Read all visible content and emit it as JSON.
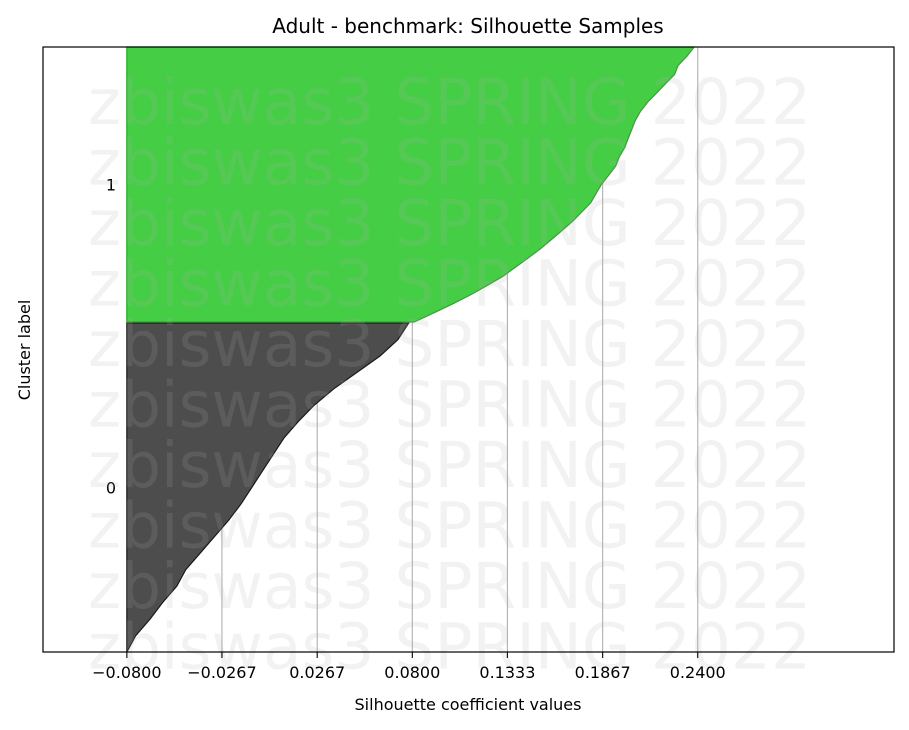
{
  "chart_data": {
    "type": "area",
    "subtype": "silhouette",
    "title": "Adult - benchmark: Silhouette Samples",
    "xlabel": "Silhouette coefficient values",
    "ylabel": "Cluster label",
    "xlim": [
      -0.127,
      0.35
    ],
    "xticks": [
      -0.08,
      -0.0267,
      0.0267,
      0.08,
      0.1333,
      0.1867,
      0.24
    ],
    "xtick_labels": [
      "−0.0800",
      "−0.0267",
      "0.0267",
      "0.0800",
      "0.1333",
      "0.1867",
      "0.2400"
    ],
    "grid": "x-major",
    "clusters": [
      {
        "label": "0",
        "color": "#4d4d4d",
        "edge_color": "#1a1a1a",
        "profile": [
          [
            0.0,
            -0.08
          ],
          [
            0.05,
            -0.075
          ],
          [
            0.1,
            -0.067
          ],
          [
            0.15,
            -0.06
          ],
          [
            0.2,
            -0.052
          ],
          [
            0.25,
            -0.047
          ],
          [
            0.3,
            -0.039
          ],
          [
            0.35,
            -0.031
          ],
          [
            0.4,
            -0.023
          ],
          [
            0.45,
            -0.016
          ],
          [
            0.5,
            -0.01
          ],
          [
            0.55,
            -0.004
          ],
          [
            0.6,
            0.002
          ],
          [
            0.65,
            0.008
          ],
          [
            0.7,
            0.016
          ],
          [
            0.75,
            0.025
          ],
          [
            0.8,
            0.036
          ],
          [
            0.85,
            0.049
          ],
          [
            0.9,
            0.062
          ],
          [
            0.95,
            0.072
          ],
          [
            1.0,
            0.078
          ]
        ]
      },
      {
        "label": "1",
        "color": "#46cd46",
        "edge_color": "#22b022",
        "profile": [
          [
            0.0,
            0.081
          ],
          [
            0.033,
            0.092
          ],
          [
            0.067,
            0.103
          ],
          [
            0.1,
            0.113
          ],
          [
            0.133,
            0.122
          ],
          [
            0.167,
            0.131
          ],
          [
            0.2,
            0.138
          ],
          [
            0.233,
            0.145
          ],
          [
            0.267,
            0.152
          ],
          [
            0.3,
            0.158
          ],
          [
            0.333,
            0.164
          ],
          [
            0.367,
            0.17
          ],
          [
            0.4,
            0.175
          ],
          [
            0.433,
            0.18
          ],
          [
            0.467,
            0.183
          ],
          [
            0.5,
            0.186
          ],
          [
            0.533,
            0.19
          ],
          [
            0.567,
            0.194
          ],
          [
            0.6,
            0.196
          ],
          [
            0.633,
            0.199
          ],
          [
            0.667,
            0.201
          ],
          [
            0.7,
            0.203
          ],
          [
            0.733,
            0.205
          ],
          [
            0.767,
            0.208
          ],
          [
            0.8,
            0.212
          ],
          [
            0.833,
            0.217
          ],
          [
            0.867,
            0.222
          ],
          [
            0.9,
            0.227
          ],
          [
            0.933,
            0.229
          ],
          [
            0.967,
            0.234
          ],
          [
            1.0,
            0.238
          ]
        ]
      }
    ],
    "watermark": {
      "text": "zbiswas3 SPRING 2022",
      "repeat": 10
    }
  }
}
